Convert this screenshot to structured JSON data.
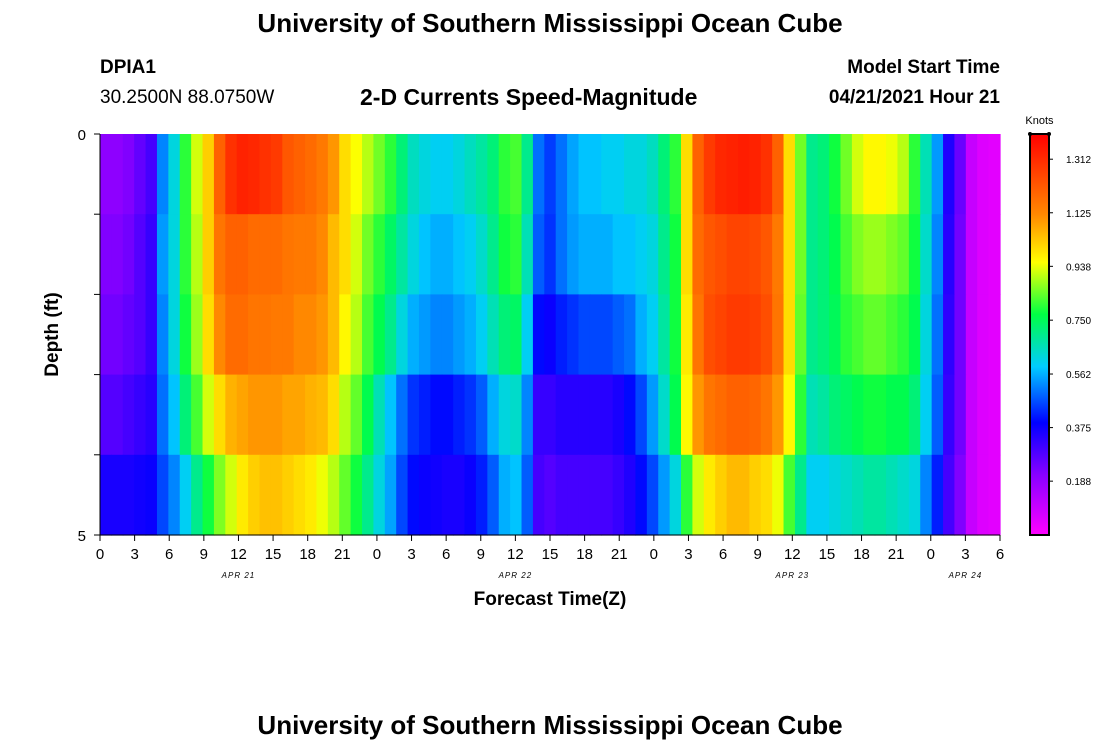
{
  "page_title": "University of Southern Mississippi Ocean Cube",
  "station": {
    "id": "DPIA1",
    "coords": "30.2500N  88.0750W"
  },
  "model": {
    "label": "Model Start Time",
    "start": "04/21/2021 Hour 21"
  },
  "footer_title": "University of Southern Mississippi Ocean Cube",
  "chart_data": {
    "type": "heatmap",
    "title": "2-D Currents Speed-Magnitude",
    "xlabel": "Forecast Time(Z)",
    "ylabel": "Depth (ft)",
    "x_ticks": [
      "0",
      "3",
      "6",
      "9",
      "12",
      "15",
      "18",
      "21",
      "0",
      "3",
      "6",
      "9",
      "12",
      "15",
      "18",
      "21",
      "0",
      "3",
      "6",
      "9",
      "12",
      "15",
      "18",
      "21",
      "0",
      "3",
      "6"
    ],
    "y_ticks": [
      "0",
      "5"
    ],
    "ylim": [
      0,
      5
    ],
    "date_labels": [
      {
        "label": "APR 21",
        "hour_index": 4
      },
      {
        "label": "APR 22",
        "hour_index": 12
      },
      {
        "label": "APR 23",
        "hour_index": 20
      },
      {
        "label": "APR 24",
        "hour_index": 25
      }
    ],
    "colorbar": {
      "title": "Knots",
      "min": 0.0,
      "max": 1.4,
      "ticks": [
        "1.312",
        "1.125",
        "0.938",
        "0.750",
        "0.562",
        "0.375",
        "0.188"
      ],
      "tick_values": [
        1.312,
        1.125,
        0.938,
        0.75,
        0.562,
        0.375,
        0.188
      ]
    },
    "column_hours": [
      0,
      1,
      2,
      3,
      4,
      5,
      6,
      7,
      8,
      9,
      10,
      11,
      12,
      13,
      14,
      15,
      16,
      17,
      18,
      19,
      20,
      21,
      22,
      23,
      24,
      25,
      26,
      27,
      28,
      29,
      30,
      31,
      32,
      33,
      34,
      35,
      36,
      37,
      38,
      39,
      40,
      41,
      42,
      43,
      44,
      45,
      46,
      47,
      48,
      49,
      50,
      51,
      52,
      53,
      54,
      55,
      56,
      57,
      58,
      59,
      60,
      61,
      62,
      63,
      64,
      65,
      66,
      67,
      68,
      69,
      70,
      71,
      72,
      73,
      74,
      75,
      76,
      77,
      78
    ],
    "depth_layers": [
      0,
      1,
      2,
      3,
      4
    ],
    "values": [
      [
        0.2,
        0.2,
        0.22,
        0.26,
        0.3,
        0.52,
        0.62,
        0.8,
        0.92,
        1.02,
        1.2,
        1.3,
        1.33,
        1.32,
        1.3,
        1.28,
        1.22,
        1.2,
        1.18,
        1.15,
        1.1,
        1.0,
        0.95,
        0.9,
        0.85,
        0.8,
        0.72,
        0.65,
        0.62,
        0.6,
        0.6,
        0.62,
        0.65,
        0.68,
        0.72,
        0.8,
        0.82,
        0.7,
        0.5,
        0.45,
        0.5,
        0.55,
        0.58,
        0.58,
        0.6,
        0.6,
        0.62,
        0.62,
        0.65,
        0.72,
        0.8,
        1.0,
        1.2,
        1.28,
        1.32,
        1.33,
        1.34,
        1.33,
        1.3,
        1.2,
        1.0,
        0.85,
        0.7,
        0.72,
        0.78,
        0.85,
        0.92,
        0.96,
        0.96,
        0.94,
        0.9,
        0.8,
        0.66,
        0.54,
        0.35,
        0.25,
        0.1,
        0.06,
        0.05
      ],
      [
        0.22,
        0.22,
        0.24,
        0.28,
        0.32,
        0.54,
        0.62,
        0.8,
        0.9,
        1.02,
        1.16,
        1.2,
        1.2,
        1.18,
        1.18,
        1.18,
        1.16,
        1.15,
        1.15,
        1.12,
        1.05,
        1.0,
        0.92,
        0.85,
        0.8,
        0.74,
        0.68,
        0.62,
        0.58,
        0.56,
        0.56,
        0.58,
        0.6,
        0.64,
        0.7,
        0.78,
        0.8,
        0.66,
        0.48,
        0.44,
        0.5,
        0.54,
        0.56,
        0.56,
        0.56,
        0.58,
        0.58,
        0.6,
        0.62,
        0.7,
        0.78,
        1.0,
        1.18,
        1.22,
        1.24,
        1.26,
        1.26,
        1.25,
        1.22,
        1.15,
        1.0,
        0.85,
        0.7,
        0.72,
        0.76,
        0.82,
        0.86,
        0.88,
        0.88,
        0.86,
        0.84,
        0.78,
        0.64,
        0.52,
        0.34,
        0.24,
        0.1,
        0.06,
        0.05
      ],
      [
        0.24,
        0.24,
        0.26,
        0.28,
        0.32,
        0.52,
        0.62,
        0.78,
        0.88,
        1.0,
        1.12,
        1.18,
        1.18,
        1.16,
        1.16,
        1.15,
        1.15,
        1.12,
        1.12,
        1.1,
        1.05,
        0.96,
        0.9,
        0.82,
        0.76,
        0.7,
        0.62,
        0.56,
        0.54,
        0.52,
        0.52,
        0.54,
        0.56,
        0.6,
        0.66,
        0.72,
        0.74,
        0.6,
        0.4,
        0.38,
        0.42,
        0.44,
        0.46,
        0.46,
        0.46,
        0.48,
        0.5,
        0.56,
        0.6,
        0.68,
        0.78,
        0.98,
        1.16,
        1.24,
        1.26,
        1.28,
        1.28,
        1.27,
        1.24,
        1.16,
        1.0,
        0.84,
        0.7,
        0.72,
        0.75,
        0.8,
        0.82,
        0.84,
        0.84,
        0.82,
        0.8,
        0.76,
        0.62,
        0.5,
        0.33,
        0.24,
        0.1,
        0.06,
        0.05
      ],
      [
        0.28,
        0.28,
        0.3,
        0.32,
        0.34,
        0.5,
        0.58,
        0.72,
        0.82,
        0.92,
        1.0,
        1.06,
        1.08,
        1.1,
        1.1,
        1.1,
        1.08,
        1.08,
        1.06,
        1.05,
        1.0,
        0.9,
        0.84,
        0.76,
        0.66,
        0.58,
        0.5,
        0.44,
        0.42,
        0.4,
        0.4,
        0.42,
        0.44,
        0.48,
        0.56,
        0.62,
        0.64,
        0.52,
        0.32,
        0.32,
        0.34,
        0.34,
        0.34,
        0.34,
        0.34,
        0.36,
        0.4,
        0.46,
        0.54,
        0.64,
        0.76,
        0.96,
        1.1,
        1.16,
        1.18,
        1.2,
        1.2,
        1.19,
        1.16,
        1.1,
        0.96,
        0.8,
        0.66,
        0.68,
        0.72,
        0.74,
        0.76,
        0.78,
        0.78,
        0.76,
        0.76,
        0.72,
        0.6,
        0.48,
        0.32,
        0.24,
        0.1,
        0.06,
        0.05
      ],
      [
        0.36,
        0.36,
        0.36,
        0.37,
        0.38,
        0.46,
        0.52,
        0.6,
        0.7,
        0.78,
        0.86,
        0.92,
        0.98,
        1.02,
        1.04,
        1.04,
        1.02,
        1.0,
        0.98,
        0.94,
        0.9,
        0.84,
        0.78,
        0.7,
        0.62,
        0.55,
        0.46,
        0.4,
        0.38,
        0.37,
        0.36,
        0.36,
        0.38,
        0.42,
        0.48,
        0.56,
        0.58,
        0.48,
        0.3,
        0.28,
        0.3,
        0.3,
        0.3,
        0.3,
        0.3,
        0.32,
        0.35,
        0.4,
        0.46,
        0.54,
        0.62,
        0.8,
        0.92,
        0.98,
        1.02,
        1.05,
        1.05,
        1.02,
        1.0,
        0.94,
        0.82,
        0.7,
        0.6,
        0.6,
        0.62,
        0.64,
        0.66,
        0.68,
        0.68,
        0.66,
        0.64,
        0.62,
        0.52,
        0.42,
        0.3,
        0.22,
        0.1,
        0.06,
        0.05
      ]
    ]
  }
}
